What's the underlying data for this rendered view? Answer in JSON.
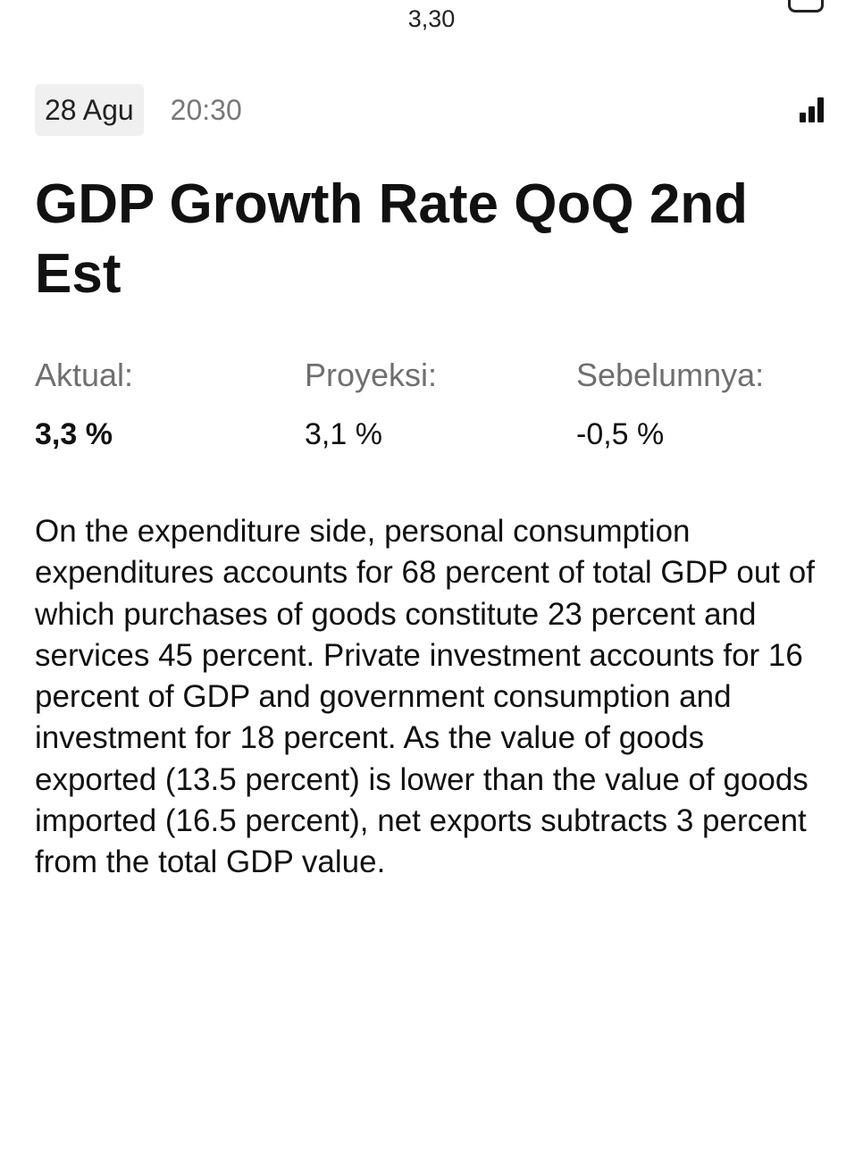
{
  "status": {
    "top_value": "3,30"
  },
  "event": {
    "date": "28 Agu",
    "time": "20:30",
    "impact_icon": "signal-bars-icon",
    "title": "GDP Growth Rate QoQ 2nd Est"
  },
  "stats": {
    "actual": {
      "label": "Aktual:",
      "value": "3,3 %"
    },
    "forecast": {
      "label": "Proyeksi:",
      "value": "3,1 %"
    },
    "previous": {
      "label": "Sebelumnya:",
      "value": "-0,5 %"
    }
  },
  "description": "On the expenditure side, personal consumption expenditures accounts for 68 percent of total GDP out of which purchases of goods constitute 23 percent and services 45 percent. Private investment accounts for 16 percent of GDP and government consumption and investment for 18 percent. As the value of goods exported (13.5 percent) is lower than the value of goods imported (16.5 percent), net exports subtracts 3 percent from the total GDP value."
}
